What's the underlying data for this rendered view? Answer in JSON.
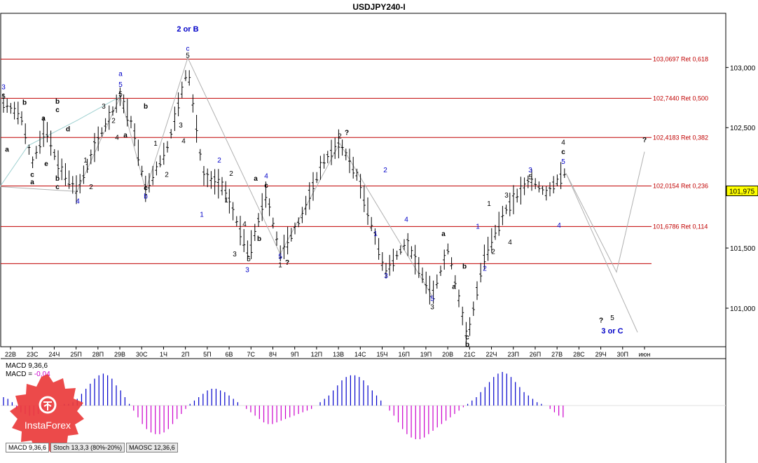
{
  "window": {
    "title": "USDJPY240-I"
  },
  "chart_data": {
    "type": "candlestick",
    "symbol": "USDJPY240-I",
    "current_price": "101,975",
    "y_ticks": [
      "103,000",
      "102,500",
      "102,000",
      "101,500",
      "101,000"
    ],
    "y_tick_values": [
      103.0,
      102.5,
      102.0,
      101.5,
      101.0
    ],
    "ylim": [
      100.68,
      103.45
    ],
    "x_ticks": [
      "22В",
      "23С",
      "24Ч",
      "25П",
      "28П",
      "29В",
      "30С",
      "1Ч",
      "2П",
      "5П",
      "6В",
      "7С",
      "8Ч",
      "9П",
      "12П",
      "13В",
      "14С",
      "15Ч",
      "16П",
      "19П",
      "20В",
      "21С",
      "22Ч",
      "23П",
      "26П",
      "27В",
      "28С",
      "29Ч",
      "30П",
      "июн"
    ],
    "fib_levels": [
      {
        "label": "103,0697 Ret 0,618",
        "value": 103.0697
      },
      {
        "label": "102,7440 Ret 0,500",
        "value": 102.744
      },
      {
        "label": "102,4183 Ret 0,382",
        "value": 102.4183
      },
      {
        "label": "102,0154 Ret 0,236",
        "value": 102.0154
      },
      {
        "label": "101,6786 Ret 0,114",
        "value": 101.6786
      },
      {
        "label": "",
        "value": 101.37
      }
    ],
    "wave_labels": [
      {
        "t": "2 or B",
        "c": "blue",
        "x": 268,
        "v": 103.3
      },
      {
        "t": "c",
        "c": "blue",
        "x": 268,
        "v": 103.14
      },
      {
        "t": "5",
        "c": "black",
        "x": 268,
        "v": 103.08
      },
      {
        "t": "a",
        "c": "blue",
        "x": 172,
        "v": 102.93
      },
      {
        "t": "5",
        "c": "blue",
        "x": 172,
        "v": 102.84
      },
      {
        "t": "5",
        "c": "black",
        "x": 172,
        "v": 102.76
      },
      {
        "t": "3",
        "c": "blue",
        "x": 5,
        "v": 102.82
      },
      {
        "t": "5",
        "c": "black",
        "x": 5,
        "v": 102.74
      },
      {
        "t": "b",
        "c": "black",
        "x": 35,
        "v": 102.69
      },
      {
        "t": "b",
        "c": "black",
        "x": 82,
        "v": 102.7
      },
      {
        "t": "c",
        "c": "black",
        "x": 82,
        "v": 102.63
      },
      {
        "t": "a",
        "c": "black",
        "x": 62,
        "v": 102.56
      },
      {
        "t": "d",
        "c": "black",
        "x": 97,
        "v": 102.47
      },
      {
        "t": "a",
        "c": "black",
        "x": 10,
        "v": 102.3
      },
      {
        "t": "c",
        "c": "black",
        "x": 46,
        "v": 102.09
      },
      {
        "t": "a",
        "c": "black",
        "x": 46,
        "v": 102.03
      },
      {
        "t": "e",
        "c": "black",
        "x": 66,
        "v": 102.18
      },
      {
        "t": "b",
        "c": "black",
        "x": 82,
        "v": 102.06
      },
      {
        "t": "c",
        "c": "black",
        "x": 82,
        "v": 101.99
      },
      {
        "t": "4",
        "c": "blue",
        "x": 111,
        "v": 101.87
      },
      {
        "t": "2",
        "c": "black",
        "x": 130,
        "v": 101.99
      },
      {
        "t": "1",
        "c": "black",
        "x": 122,
        "v": 102.21
      },
      {
        "t": "3",
        "c": "black",
        "x": 148,
        "v": 102.66
      },
      {
        "t": "2",
        "c": "black",
        "x": 162,
        "v": 102.54
      },
      {
        "t": "4",
        "c": "black",
        "x": 167,
        "v": 102.4
      },
      {
        "t": "a",
        "c": "black",
        "x": 179,
        "v": 102.42
      },
      {
        "t": "b",
        "c": "black",
        "x": 208,
        "v": 102.66
      },
      {
        "t": "c",
        "c": "black",
        "x": 208,
        "v": 101.98
      },
      {
        "t": "b",
        "c": "blue",
        "x": 208,
        "v": 101.91
      },
      {
        "t": "1",
        "c": "black",
        "x": 222,
        "v": 102.35
      },
      {
        "t": "2",
        "c": "black",
        "x": 238,
        "v": 102.09
      },
      {
        "t": "3",
        "c": "black",
        "x": 258,
        "v": 102.5
      },
      {
        "t": "4",
        "c": "black",
        "x": 262,
        "v": 102.37
      },
      {
        "t": "2",
        "c": "blue",
        "x": 313,
        "v": 102.21
      },
      {
        "t": "2",
        "c": "black",
        "x": 330,
        "v": 102.1
      },
      {
        "t": "1",
        "c": "blue",
        "x": 288,
        "v": 101.76
      },
      {
        "t": "1",
        "c": "black",
        "x": 323,
        "v": 101.88
      },
      {
        "t": "4",
        "c": "black",
        "x": 349,
        "v": 101.68
      },
      {
        "t": "a",
        "c": "black",
        "x": 365,
        "v": 102.06
      },
      {
        "t": "4",
        "c": "blue",
        "x": 380,
        "v": 102.08
      },
      {
        "t": "c",
        "c": "black",
        "x": 380,
        "v": 102.0
      },
      {
        "t": "3",
        "c": "black",
        "x": 335,
        "v": 101.43
      },
      {
        "t": "5",
        "c": "black",
        "x": 355,
        "v": 101.39
      },
      {
        "t": "b",
        "c": "black",
        "x": 370,
        "v": 101.56
      },
      {
        "t": "3",
        "c": "blue",
        "x": 353,
        "v": 101.3
      },
      {
        "t": "5",
        "c": "blue",
        "x": 400,
        "v": 101.41
      },
      {
        "t": "1",
        "c": "black",
        "x": 400,
        "v": 101.34
      },
      {
        "t": "?",
        "c": "black",
        "x": 410,
        "v": 101.36
      },
      {
        "t": "2",
        "c": "black",
        "x": 485,
        "v": 102.41
      },
      {
        "t": "?",
        "c": "black",
        "x": 495,
        "v": 102.44
      },
      {
        "t": "2",
        "c": "blue",
        "x": 550,
        "v": 102.13
      },
      {
        "t": "1",
        "c": "blue",
        "x": 536,
        "v": 101.6
      },
      {
        "t": "4",
        "c": "blue",
        "x": 580,
        "v": 101.72
      },
      {
        "t": "3",
        "c": "blue",
        "x": 551,
        "v": 101.25
      },
      {
        "t": "a",
        "c": "black",
        "x": 633,
        "v": 101.6
      },
      {
        "t": "5",
        "c": "blue",
        "x": 617,
        "v": 101.06
      },
      {
        "t": "3",
        "c": "black",
        "x": 617,
        "v": 100.99
      },
      {
        "t": "b",
        "c": "black",
        "x": 663,
        "v": 101.33
      },
      {
        "t": "a",
        "c": "black",
        "x": 648,
        "v": 101.16
      },
      {
        "t": "c",
        "c": "black",
        "x": 667,
        "v": 100.74
      },
      {
        "t": "b",
        "c": "black",
        "x": 667,
        "v": 100.68
      },
      {
        "t": "1",
        "c": "blue",
        "x": 682,
        "v": 101.66
      },
      {
        "t": "1",
        "c": "black",
        "x": 698,
        "v": 101.85
      },
      {
        "t": "2",
        "c": "black",
        "x": 704,
        "v": 101.45
      },
      {
        "t": "2",
        "c": "blue",
        "x": 692,
        "v": 101.31
      },
      {
        "t": "3",
        "c": "black",
        "x": 723,
        "v": 101.92
      },
      {
        "t": "4",
        "c": "black",
        "x": 728,
        "v": 101.53
      },
      {
        "t": "3",
        "c": "blue",
        "x": 757,
        "v": 102.13
      },
      {
        "t": "5",
        "c": "black",
        "x": 757,
        "v": 102.07
      },
      {
        "t": "4",
        "c": "black",
        "x": 804,
        "v": 102.36
      },
      {
        "t": "c",
        "c": "black",
        "x": 804,
        "v": 102.28
      },
      {
        "t": "5",
        "c": "blue",
        "x": 804,
        "v": 102.2
      },
      {
        "t": "4",
        "c": "blue",
        "x": 798,
        "v": 101.67
      },
      {
        "t": "?",
        "c": "black",
        "x": 920,
        "v": 102.38
      },
      {
        "t": "?",
        "c": "black",
        "x": 858,
        "v": 100.88
      },
      {
        "t": "5",
        "c": "black",
        "x": 874,
        "v": 100.9
      },
      {
        "t": "3 or C",
        "c": "blue",
        "x": 874,
        "v": 100.79
      }
    ],
    "macd": {
      "label1": "MACD 9,36,6",
      "label2_prefix": "MACD =",
      "label2_value": "-0,04",
      "values": [
        0.25,
        0.2,
        0.1,
        -0.1,
        -0.2,
        -0.25,
        -0.3,
        -0.3,
        -0.25,
        -0.2,
        -0.15,
        -0.1,
        -0.05,
        0.0,
        0.05,
        0.05,
        0.1,
        0.2,
        0.35,
        0.5,
        0.65,
        0.8,
        0.9,
        0.95,
        0.9,
        0.8,
        0.6,
        0.45,
        0.25,
        0.05,
        -0.15,
        -0.35,
        -0.55,
        -0.7,
        -0.8,
        -0.85,
        -0.85,
        -0.8,
        -0.7,
        -0.55,
        -0.4,
        -0.25,
        -0.1,
        0.05,
        0.15,
        0.25,
        0.35,
        0.45,
        0.5,
        0.5,
        0.45,
        0.4,
        0.3,
        0.2,
        0.1,
        0.0,
        -0.1,
        -0.2,
        -0.3,
        -0.4,
        -0.5,
        -0.55,
        -0.55,
        -0.5,
        -0.45,
        -0.4,
        -0.35,
        -0.3,
        -0.25,
        -0.2,
        -0.15,
        -0.1,
        0.0,
        0.1,
        0.2,
        0.3,
        0.45,
        0.6,
        0.75,
        0.85,
        0.9,
        0.9,
        0.85,
        0.75,
        0.6,
        0.45,
        0.3,
        0.15,
        0.0,
        -0.15,
        -0.3,
        -0.5,
        -0.7,
        -0.85,
        -0.95,
        -1.0,
        -1.0,
        -0.95,
        -0.85,
        -0.75,
        -0.65,
        -0.55,
        -0.45,
        -0.35,
        -0.25,
        -0.15,
        -0.05,
        0.05,
        0.15,
        0.25,
        0.4,
        0.55,
        0.7,
        0.85,
        0.95,
        1.0,
        0.95,
        0.85,
        0.7,
        0.55,
        0.4,
        0.3,
        0.2,
        0.1,
        0.05,
        0.0,
        -0.1,
        -0.2,
        -0.3,
        -0.35
      ]
    },
    "tabs": [
      "MACD 9,36,6",
      "Stoch 13,3,3 (80%-20%)",
      "MAOSC 12,36,6"
    ],
    "logo_text": "InstaForex"
  }
}
